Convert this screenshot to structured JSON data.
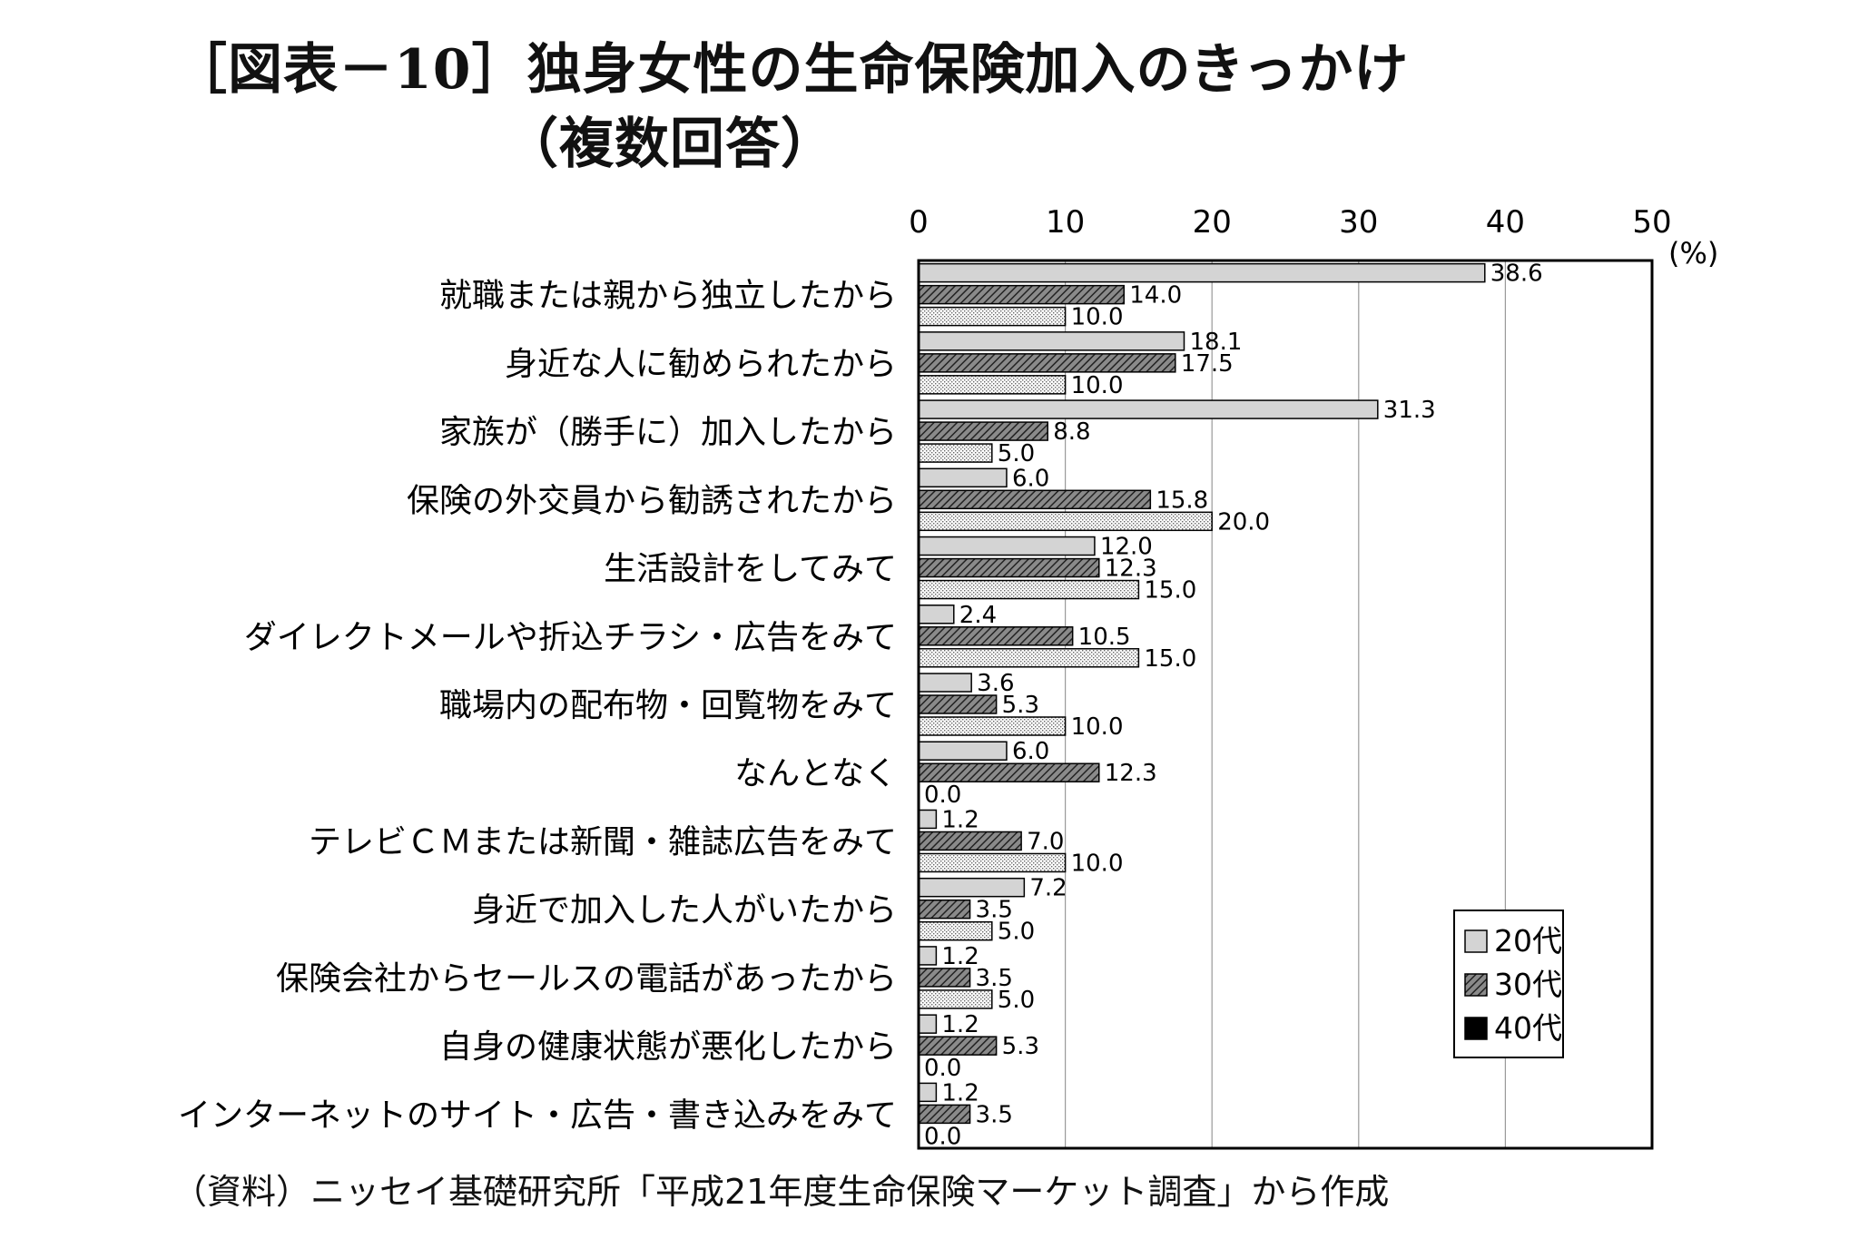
{
  "title": {
    "line1": "［図表－10］独身女性の生命保険加入のきっかけ",
    "line2": "（複数回答）"
  },
  "footnote": "（資料）ニッセイ基礎研究所「平成21年度生命保険マーケット調査」から作成",
  "chart_data": {
    "type": "bar",
    "orientation": "horizontal",
    "unit_label": "(%)",
    "xlim": [
      0,
      50
    ],
    "ticks": [
      "0",
      "10",
      "20",
      "30",
      "40",
      "50"
    ],
    "categories": [
      "就職または親から独立したから",
      "身近な人に勧められたから",
      "家族が（勝手に）加入したから",
      "保険の外交員から勧誘されたから",
      "生活設計をしてみて",
      "ダイレクトメールや折込チラシ・広告をみて",
      "職場内の配布物・回覧物をみて",
      "なんとなく",
      "テレビＣＭまたは新聞・雑誌広告をみて",
      "身近で加入した人がいたから",
      "保険会社からセールスの電話があったから",
      "自身の健康状態が悪化したから",
      "インターネットのサイト・広告・書き込みをみて"
    ],
    "series": [
      {
        "name": "20代",
        "values": [
          38.6,
          18.1,
          31.3,
          6.0,
          12.0,
          2.4,
          3.6,
          6.0,
          1.2,
          7.2,
          1.2,
          1.2,
          1.2
        ],
        "labels": [
          "38.6",
          "18.1",
          "31.3",
          "6.0",
          "12.0",
          "2.4",
          "3.6",
          "6.0",
          "1.2",
          "7.2",
          "1.2",
          "1.2",
          "1.2"
        ]
      },
      {
        "name": "30代",
        "values": [
          14.0,
          17.5,
          8.8,
          15.8,
          12.3,
          10.5,
          5.3,
          12.3,
          7.0,
          3.5,
          3.5,
          5.3,
          3.5
        ],
        "labels": [
          "14.0",
          "17.5",
          "8.8",
          "15.8",
          "12.3",
          "10.5",
          "5.3",
          "12.3",
          "7.0",
          "3.5",
          "3.5",
          "5.3",
          "3.5"
        ]
      },
      {
        "name": "40代",
        "values": [
          10.0,
          10.0,
          5.0,
          20.0,
          15.0,
          15.0,
          10.0,
          0.0,
          10.0,
          5.0,
          5.0,
          0.0,
          0.0
        ],
        "labels": [
          "10.0",
          "10.0",
          "5.0",
          "20.0",
          "15.0",
          "15.0",
          "10.0",
          "0.0",
          "10.0",
          "5.0",
          "5.0",
          "0.0",
          "0.0"
        ]
      }
    ],
    "legend": {
      "position": "bottom-right",
      "entries": [
        "20代",
        "30代",
        "40代"
      ]
    },
    "colors": {
      "s20": "#d4d4d4",
      "s30_hatch": "#444444",
      "s40_dots": "#555555",
      "frame": "#000000"
    }
  }
}
